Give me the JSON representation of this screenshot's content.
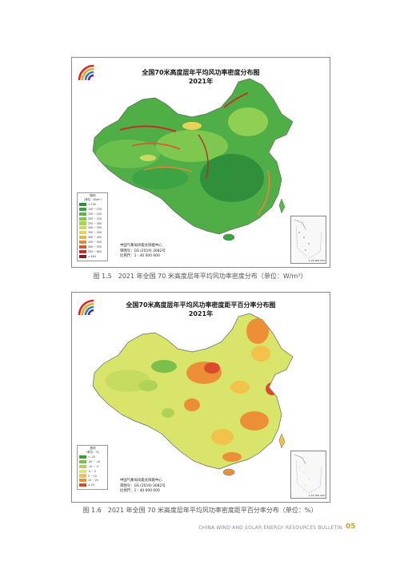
{
  "figure1": {
    "title": "全国70米高度层年平均风功率密度分布图",
    "year": "2021年",
    "legend_title": "图例",
    "legend_unit": "(单位：W/m²)",
    "legend_items": [
      {
        "label": "< 100",
        "color": "#2f8f3a"
      },
      {
        "label": "100 ~ 150",
        "color": "#3da443"
      },
      {
        "label": "150 ~ 200",
        "color": "#58b848"
      },
      {
        "label": "200 ~ 250",
        "color": "#7fc84f"
      },
      {
        "label": "250 ~ 300",
        "color": "#a7d35a"
      },
      {
        "label": "300 ~ 350",
        "color": "#c9dc5e"
      },
      {
        "label": "350 ~ 400",
        "color": "#e6d45a"
      },
      {
        "label": "400 ~ 450",
        "color": "#f0b246"
      },
      {
        "label": "450 ~ 500",
        "color": "#e9853a"
      },
      {
        "label": "500 ~ 550",
        "color": "#d9552f"
      },
      {
        "label": "550 ~ 600",
        "color": "#c32f2a"
      },
      {
        "label": "≥ 600",
        "color": "#8e1b1f"
      }
    ],
    "credit_org": "中国气象局风能太阳能中心",
    "credit_review": "审图号：GS (2019) 3082号",
    "credit_scale": "比例尺：1 : 40 000 000",
    "inset_scale": "1:20 000 000",
    "caption": "图 1.5　2021 年全国 70 米高度层年平均风功率密度分布（单位：W/m²）"
  },
  "figure2": {
    "title": "全国70米高度层年平均风功率密度距平百分率分布图",
    "year": "2021年",
    "legend_title": "图例",
    "legend_unit": "(单位：%)",
    "legend_items": [
      {
        "label": "< -20",
        "color": "#3f9a3e"
      },
      {
        "label": "-20 ~ -10",
        "color": "#79c04c"
      },
      {
        "label": "-10 ~ -5",
        "color": "#aed357"
      },
      {
        "label": "-5 ~ 5",
        "color": "#dfe56a"
      },
      {
        "label": "5 ~ 10",
        "color": "#f3c24a"
      },
      {
        "label": "10 ~ 20",
        "color": "#ec8f37"
      },
      {
        "label": "≥ 20",
        "color": "#d94c2a"
      }
    ],
    "credit_org": "中国气象局风能太阳能中心",
    "credit_review": "审图号：GS (2019) 3082号",
    "credit_scale": "比例尺：1 : 40 000 000",
    "inset_scale": "1:20 000 000",
    "caption": "图 1.6　2021 年全国 70 米高度层年平均风功率密度距平百分率分布（单位：%）"
  },
  "footer": {
    "text": "CHINA WIND AND SOLAR ENERGY RESOURCES BULLETIN",
    "page_number": "05"
  },
  "colors": {
    "map_base_1": "#4fae45",
    "map_base_2": "#d9e46a",
    "page_number": "#c9a227"
  }
}
